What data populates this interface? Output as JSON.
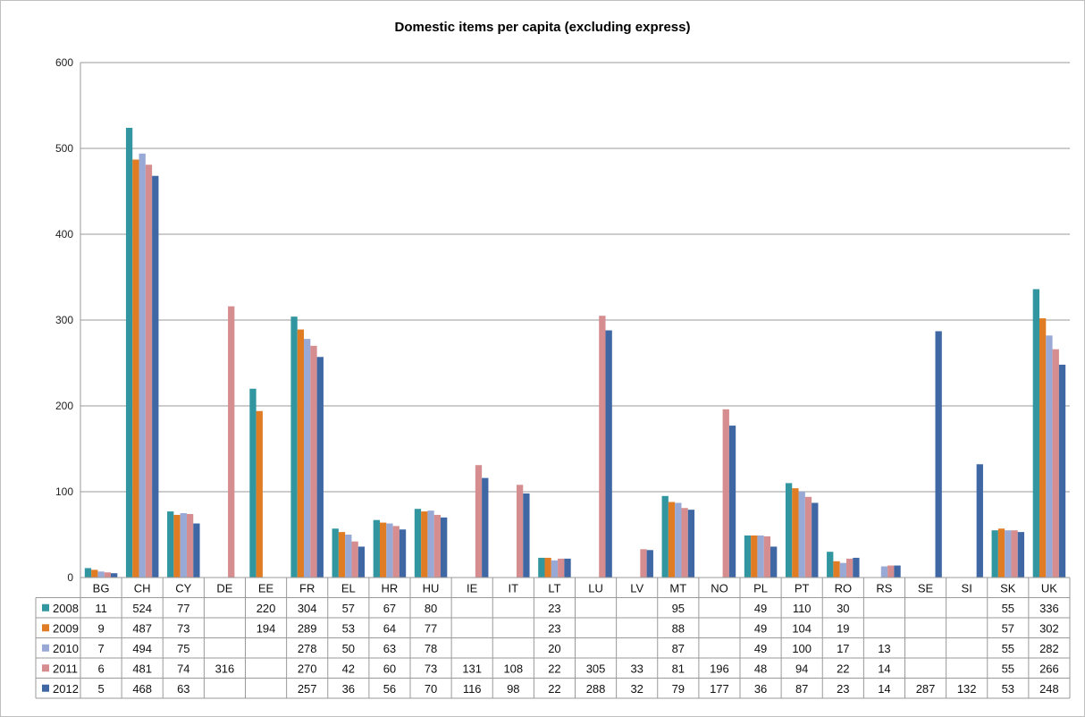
{
  "chart_data": {
    "type": "bar",
    "title": "Domestic items per capita (excluding express)",
    "xlabel": "",
    "ylabel": "",
    "ylim": [
      0,
      600
    ],
    "yticks": [
      0,
      100,
      200,
      300,
      400,
      500,
      600
    ],
    "grid": true,
    "legend": "data-table",
    "categories": [
      "BG",
      "CH",
      "CY",
      "DE",
      "EE",
      "FR",
      "EL",
      "HR",
      "HU",
      "IE",
      "IT",
      "LT",
      "LU",
      "LV",
      "MT",
      "NO",
      "PL",
      "PT",
      "RO",
      "RS",
      "SE",
      "SI",
      "SK",
      "UK"
    ],
    "series": [
      {
        "name": "2008",
        "color": "#31969f",
        "values": [
          11,
          524,
          77,
          null,
          220,
          304,
          57,
          67,
          80,
          null,
          null,
          23,
          null,
          null,
          95,
          null,
          49,
          110,
          30,
          null,
          null,
          null,
          55,
          336
        ]
      },
      {
        "name": "2009",
        "color": "#e07c24",
        "values": [
          9,
          487,
          73,
          null,
          194,
          289,
          53,
          64,
          77,
          null,
          null,
          23,
          null,
          null,
          88,
          null,
          49,
          104,
          19,
          null,
          null,
          null,
          57,
          302
        ]
      },
      {
        "name": "2010",
        "color": "#99a9d6",
        "values": [
          7,
          494,
          75,
          null,
          null,
          278,
          50,
          63,
          78,
          null,
          null,
          20,
          null,
          null,
          87,
          null,
          49,
          100,
          17,
          13,
          null,
          null,
          55,
          282
        ]
      },
      {
        "name": "2011",
        "color": "#d58d8f",
        "values": [
          6,
          481,
          74,
          316,
          null,
          270,
          42,
          60,
          73,
          131,
          108,
          22,
          305,
          33,
          81,
          196,
          48,
          94,
          22,
          14,
          null,
          null,
          55,
          266
        ]
      },
      {
        "name": "2012",
        "color": "#3f67a4",
        "values": [
          5,
          468,
          63,
          null,
          null,
          257,
          36,
          56,
          70,
          116,
          98,
          22,
          288,
          32,
          79,
          177,
          36,
          87,
          23,
          14,
          287,
          132,
          53,
          248
        ]
      }
    ]
  }
}
